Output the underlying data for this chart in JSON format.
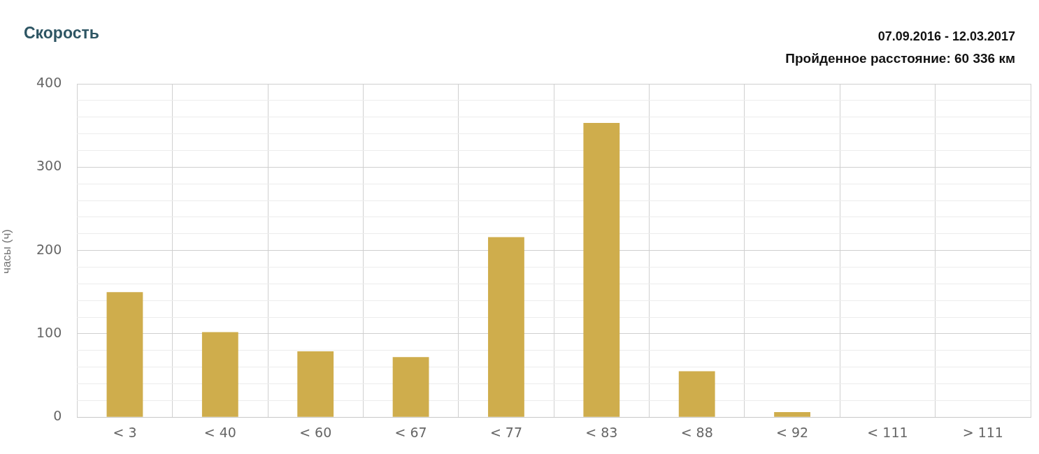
{
  "chart_data": {
    "type": "bar",
    "title": "Скорость",
    "annotations": [
      "07.09.2016 - 12.03.2017",
      "Пройденное расстояние: 60 336 км"
    ],
    "ylabel": "часы (ч)",
    "categories": [
      "< 3",
      "< 40",
      "< 60",
      "< 67",
      "< 77",
      "< 83",
      "< 88",
      "< 92",
      "< 111",
      "> 111"
    ],
    "values": [
      150,
      102,
      79,
      72,
      216,
      353,
      55,
      6,
      0,
      0
    ],
    "color": "#cfad4c",
    "ylim": [
      0,
      400
    ],
    "yticks": [
      0,
      {
        "value": 20,
        "label": null
      },
      {
        "value": 40,
        "label": null
      },
      {
        "value": 60,
        "label": null
      },
      {
        "value": 80,
        "label": null
      },
      100,
      {
        "value": 120,
        "label": null
      },
      {
        "value": 140,
        "label": null
      },
      {
        "value": 160,
        "label": null
      },
      {
        "value": 180,
        "label": null
      },
      200,
      {
        "value": 220,
        "label": null
      },
      {
        "value": 240,
        "label": null
      },
      {
        "value": 260,
        "label": null
      },
      {
        "value": 280,
        "label": null
      },
      300,
      {
        "value": 320,
        "label": null
      },
      {
        "value": 340,
        "label": null
      },
      {
        "value": 360,
        "label": null
      },
      {
        "value": 380,
        "label": null
      },
      400
    ],
    "grid": true,
    "legend": false
  }
}
